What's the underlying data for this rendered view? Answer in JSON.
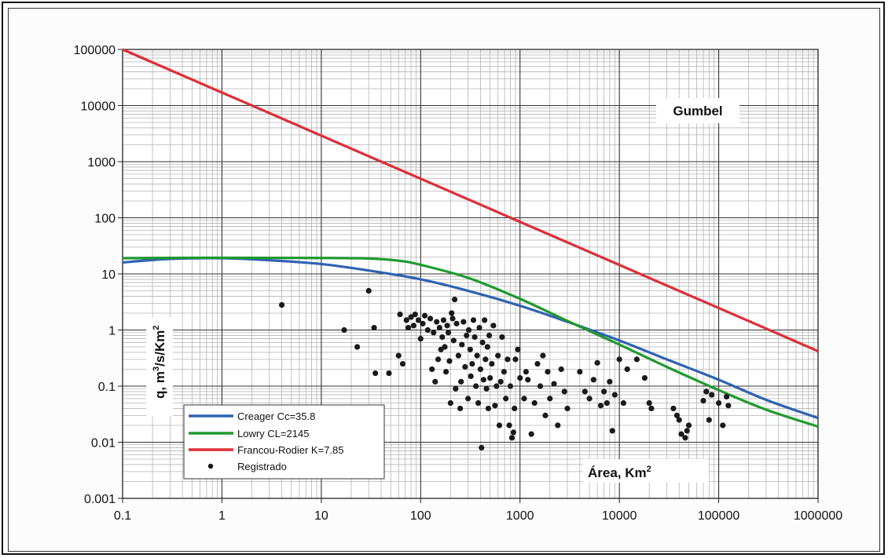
{
  "chart_data": {
    "type": "scatter",
    "x_scale": "log",
    "y_scale": "log",
    "xlim": [
      0.1,
      1000000
    ],
    "ylim": [
      0.001,
      100000
    ],
    "grid": true,
    "legend_position": "bottom-left",
    "x_tick_labels": [
      "0.1",
      "1",
      "10",
      "100",
      "1000",
      "10000",
      "100000",
      "1000000"
    ],
    "y_tick_labels": [
      "0.001",
      "0.01",
      "0.1",
      "1",
      "10",
      "100",
      "1000",
      "10000",
      "100000"
    ],
    "ylabel_parts": [
      "q, m",
      "3",
      "/s/Km",
      "2"
    ],
    "annotations": {
      "gumbel": "Gumbel",
      "area_label": "Área, Km",
      "area_sup": "2"
    },
    "colors": {
      "creager": "#2e62b2",
      "lowry": "#1f9a2e",
      "francou": "#e02d36",
      "points": "#1a1a1a"
    },
    "series": [
      {
        "name": "Creager Cc=35.8",
        "kind": "line",
        "x": [
          0.1,
          0.3,
          1,
          3,
          10,
          30,
          100,
          300,
          1000,
          3000,
          10000,
          30000,
          100000,
          300000,
          1000000
        ],
        "y": [
          16,
          18.5,
          19,
          17.5,
          15,
          11.5,
          8,
          5,
          2.7,
          1.4,
          0.65,
          0.3,
          0.13,
          0.057,
          0.027
        ]
      },
      {
        "name": "Lowry CL=2145",
        "kind": "line",
        "x": [
          0.1,
          0.3,
          1,
          3,
          10,
          30,
          60,
          100,
          300,
          1000,
          3000,
          10000,
          30000,
          100000,
          300000,
          1000000
        ],
        "y": [
          19,
          19.3,
          19.4,
          19.3,
          19.2,
          18.8,
          17.2,
          14.5,
          8.5,
          3.6,
          1.45,
          0.55,
          0.22,
          0.085,
          0.038,
          0.019
        ]
      },
      {
        "name": "Francou-Rodier K=7.85",
        "kind": "line",
        "x": [
          0.1,
          1000000
        ],
        "y": [
          100000,
          0.42
        ]
      },
      {
        "name": "Registrado",
        "kind": "scatter",
        "points": [
          [
            4,
            2.8
          ],
          [
            17,
            1.0
          ],
          [
            23,
            0.5
          ],
          [
            30,
            5.0
          ],
          [
            34,
            1.1
          ],
          [
            35,
            0.17
          ],
          [
            48,
            0.17
          ],
          [
            60,
            0.35
          ],
          [
            62,
            1.9
          ],
          [
            66,
            0.25
          ],
          [
            72,
            1.5
          ],
          [
            75,
            1.1
          ],
          [
            80,
            1.7
          ],
          [
            85,
            1.2
          ],
          [
            88,
            1.9
          ],
          [
            95,
            1.5
          ],
          [
            100,
            0.7
          ],
          [
            105,
            1.3
          ],
          [
            110,
            1.8
          ],
          [
            118,
            1.0
          ],
          [
            125,
            1.6
          ],
          [
            130,
            0.2
          ],
          [
            135,
            0.9
          ],
          [
            140,
            0.12
          ],
          [
            145,
            1.4
          ],
          [
            150,
            0.3
          ],
          [
            155,
            1.1
          ],
          [
            160,
            0.45
          ],
          [
            165,
            0.75
          ],
          [
            170,
            1.5
          ],
          [
            175,
            0.5
          ],
          [
            180,
            0.18
          ],
          [
            185,
            1.2
          ],
          [
            190,
            0.9
          ],
          [
            195,
            0.28
          ],
          [
            200,
            0.05
          ],
          [
            205,
            2.0
          ],
          [
            210,
            1.6
          ],
          [
            215,
            0.65
          ],
          [
            220,
            3.5
          ],
          [
            225,
            0.09
          ],
          [
            230,
            1.3
          ],
          [
            240,
            0.35
          ],
          [
            250,
            0.04
          ],
          [
            255,
            0.12
          ],
          [
            260,
            0.55
          ],
          [
            270,
            1.4
          ],
          [
            280,
            0.22
          ],
          [
            290,
            0.8
          ],
          [
            300,
            0.06
          ],
          [
            305,
            1.0
          ],
          [
            315,
            0.45
          ],
          [
            320,
            0.15
          ],
          [
            330,
            0.25
          ],
          [
            340,
            1.5
          ],
          [
            350,
            0.75
          ],
          [
            360,
            0.1
          ],
          [
            370,
            0.35
          ],
          [
            380,
            0.05
          ],
          [
            390,
            1.1
          ],
          [
            400,
            0.2
          ],
          [
            410,
            0.008
          ],
          [
            420,
            0.6
          ],
          [
            430,
            0.13
          ],
          [
            440,
            1.5
          ],
          [
            450,
            0.3
          ],
          [
            460,
            0.09
          ],
          [
            470,
            0.5
          ],
          [
            480,
            0.04
          ],
          [
            490,
            0.8
          ],
          [
            500,
            0.14
          ],
          [
            520,
            0.25
          ],
          [
            540,
            1.2
          ],
          [
            560,
            0.045
          ],
          [
            580,
            0.1
          ],
          [
            600,
            0.35
          ],
          [
            620,
            0.02
          ],
          [
            640,
            0.12
          ],
          [
            660,
            0.75
          ],
          [
            690,
            0.18
          ],
          [
            720,
            0.06
          ],
          [
            750,
            0.3
          ],
          [
            780,
            0.02
          ],
          [
            800,
            0.1
          ],
          [
            830,
            0.012
          ],
          [
            860,
            0.015
          ],
          [
            880,
            0.04
          ],
          [
            900,
            0.3
          ],
          [
            950,
            0.45
          ],
          [
            1000,
            0.14
          ],
          [
            1100,
            0.06
          ],
          [
            1150,
            0.18
          ],
          [
            1200,
            0.13
          ],
          [
            1300,
            0.014
          ],
          [
            1400,
            0.05
          ],
          [
            1500,
            0.25
          ],
          [
            1600,
            0.1
          ],
          [
            1700,
            0.35
          ],
          [
            1800,
            0.03
          ],
          [
            1900,
            0.18
          ],
          [
            2000,
            0.06
          ],
          [
            2200,
            0.11
          ],
          [
            2400,
            0.02
          ],
          [
            2600,
            0.2
          ],
          [
            2800,
            0.08
          ],
          [
            3000,
            0.04
          ],
          [
            4000,
            0.18
          ],
          [
            4500,
            0.08
          ],
          [
            5000,
            0.06
          ],
          [
            5500,
            0.13
          ],
          [
            6000,
            0.26
          ],
          [
            6500,
            0.045
          ],
          [
            7000,
            0.08
          ],
          [
            7500,
            0.05
          ],
          [
            8000,
            0.12
          ],
          [
            8500,
            0.016
          ],
          [
            9000,
            0.07
          ],
          [
            10000,
            0.3
          ],
          [
            11000,
            0.05
          ],
          [
            12000,
            0.2
          ],
          [
            15000,
            0.3
          ],
          [
            18000,
            0.14
          ],
          [
            20000,
            0.05
          ],
          [
            21000,
            0.04
          ],
          [
            35000,
            0.04
          ],
          [
            38000,
            0.03
          ],
          [
            40000,
            0.025
          ],
          [
            42000,
            0.014
          ],
          [
            46000,
            0.012
          ],
          [
            48000,
            0.016
          ],
          [
            50000,
            0.02
          ],
          [
            70000,
            0.055
          ],
          [
            75000,
            0.08
          ],
          [
            80000,
            0.025
          ],
          [
            85000,
            0.07
          ],
          [
            100000,
            0.05
          ],
          [
            110000,
            0.02
          ],
          [
            120000,
            0.065
          ],
          [
            125000,
            0.045
          ]
        ]
      }
    ]
  }
}
